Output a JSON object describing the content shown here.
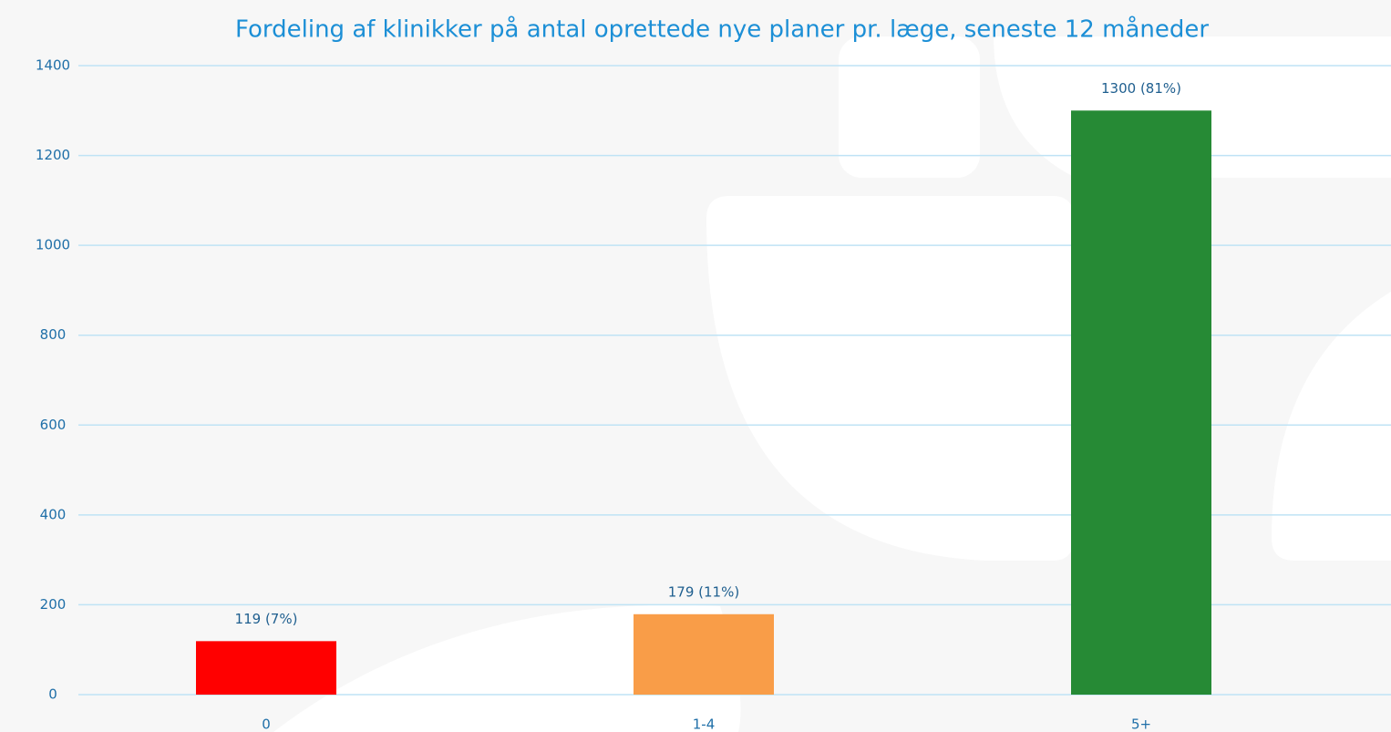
{
  "chart_data": {
    "type": "bar",
    "title": "Fordeling af klinikker på antal oprettede nye planer pr. læge, seneste 12 måneder",
    "categories": [
      "0",
      "1-4",
      "5+"
    ],
    "values": [
      119,
      179,
      1300
    ],
    "value_labels": [
      "119 (7%)",
      "179 (11%)",
      "1300 (81%)"
    ],
    "colors": [
      "#ff0000",
      "#f99d48",
      "#268a35"
    ],
    "ylim": [
      0,
      1400
    ],
    "yticks": [
      0,
      200,
      400,
      600,
      800,
      1000,
      1200,
      1400
    ],
    "grid": true
  }
}
